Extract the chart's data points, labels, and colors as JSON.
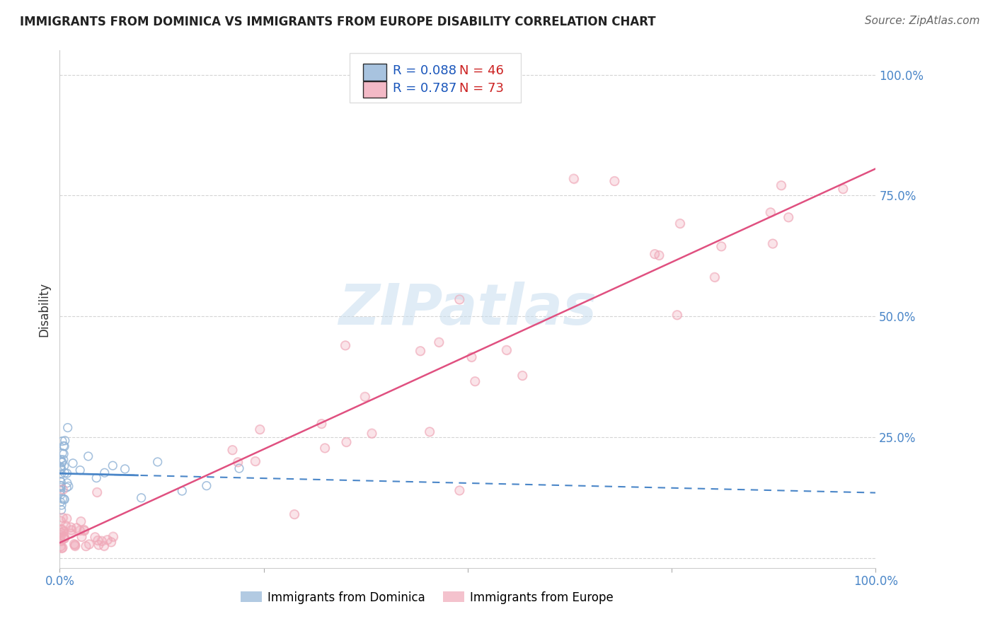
{
  "title": "IMMIGRANTS FROM DOMINICA VS IMMIGRANTS FROM EUROPE DISABILITY CORRELATION CHART",
  "source": "Source: ZipAtlas.com",
  "ylabel": "Disability",
  "xlim": [
    0,
    1.0
  ],
  "ylim": [
    -0.02,
    1.05
  ],
  "xtick_vals": [
    0.0,
    0.25,
    0.5,
    0.75,
    1.0
  ],
  "xtick_labels": [
    "0.0%",
    "",
    "",
    "",
    "100.0%"
  ],
  "ytick_vals": [
    0.0,
    0.25,
    0.5,
    0.75,
    1.0
  ],
  "ytick_labels": [
    "",
    "25.0%",
    "50.0%",
    "75.0%",
    "100.0%"
  ],
  "blue_R": 0.088,
  "blue_N": 46,
  "pink_R": 0.787,
  "pink_N": 73,
  "blue_dot_color": "#92b4d7",
  "pink_dot_color": "#f0a8b8",
  "blue_line_color": "#4a86c8",
  "pink_line_color": "#e05080",
  "watermark_color": "#c8ddef",
  "background_color": "#ffffff",
  "grid_color": "#d0d0d0",
  "title_color": "#222222",
  "source_color": "#666666",
  "tick_color": "#4a86c8",
  "ylabel_color": "#333333",
  "legend_R_color": "#1a56bb",
  "legend_N_color": "#cc2222",
  "legend_box_color": "#dddddd",
  "bottom_legend_blue": "Immigrants from Dominica",
  "bottom_legend_pink": "Immigrants from Europe"
}
